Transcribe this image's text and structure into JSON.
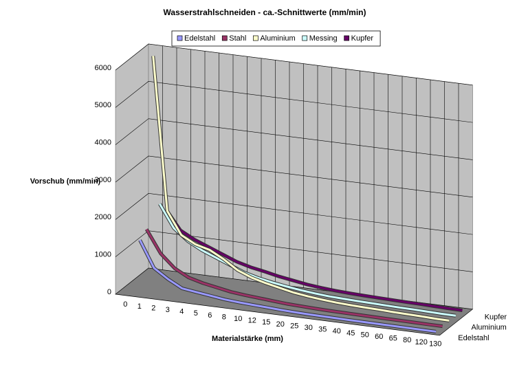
{
  "chart_data": {
    "type": "line",
    "title": "Wasserstrahlschneiden - ca.-Schnittwerte      (mm/min)",
    "y_axis_label": "Vorschub (mm/min)",
    "x_axis_label": "Materialstärke (mm)",
    "categories": [
      "0",
      "1",
      "2",
      "3",
      "4",
      "5",
      "6",
      "8",
      "10",
      "12",
      "15",
      "20",
      "25",
      "30",
      "35",
      "40",
      "45",
      "50",
      "60",
      "65",
      "80",
      "120",
      "130"
    ],
    "depth_labels": [
      "Edelstahl",
      null,
      "Aluminium",
      null,
      "Kupfer"
    ],
    "series": [
      {
        "name": "Edelstahl",
        "color": "#9999ff",
        "values": [
          null,
          1450,
          750,
          500,
          300,
          250,
          200,
          150,
          120,
          100,
          80,
          60,
          45,
          35,
          30,
          25,
          20,
          18,
          15,
          12,
          10,
          6,
          5
        ]
      },
      {
        "name": "Stahl",
        "color": "#993366",
        "values": [
          null,
          1600,
          1000,
          650,
          450,
          350,
          280,
          210,
          170,
          140,
          110,
          80,
          65,
          50,
          40,
          35,
          30,
          25,
          20,
          18,
          15,
          10,
          8
        ]
      },
      {
        "name": "Aluminium",
        "color": "#ffffcc",
        "values": [
          null,
          6100,
          2000,
          1400,
          1200,
          1100,
          900,
          650,
          500,
          400,
          320,
          240,
          190,
          150,
          120,
          100,
          85,
          75,
          60,
          50,
          40,
          25,
          20
        ]
      },
      {
        "name": "Messing",
        "color": "#ccffff",
        "values": [
          null,
          2000,
          1400,
          1100,
          900,
          750,
          600,
          450,
          350,
          280,
          220,
          170,
          130,
          100,
          85,
          70,
          60,
          50,
          40,
          35,
          25,
          15,
          12
        ]
      },
      {
        "name": "Kupfer",
        "color": "#660066",
        "values": [
          null,
          1700,
          1200,
          1000,
          850,
          700,
          550,
          450,
          380,
          300,
          240,
          180,
          140,
          110,
          90,
          75,
          65,
          55,
          45,
          40,
          30,
          20,
          15
        ]
      }
    ],
    "ylim": [
      0,
      6000
    ],
    "yticks": [
      0,
      1000,
      2000,
      3000,
      4000,
      5000,
      6000
    ],
    "grid": true
  }
}
